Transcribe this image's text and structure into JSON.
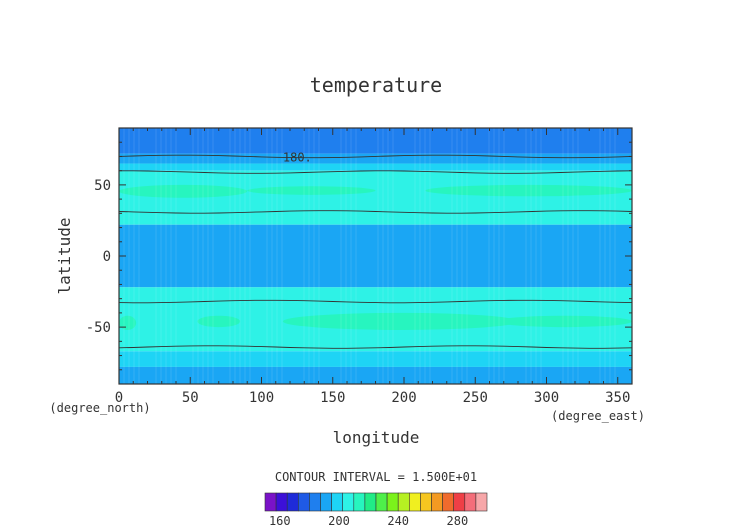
{
  "chart_data": {
    "type": "heatmap",
    "title": "temperature",
    "xlabel": "longitude",
    "ylabel": "latitude",
    "x_units": "(degree_east)",
    "y_units": "(degree_north)",
    "xlim": [
      0,
      360
    ],
    "ylim": [
      -90,
      90
    ],
    "x_ticks": [
      "0",
      "50",
      "100",
      "150",
      "200",
      "250",
      "300",
      "350"
    ],
    "y_ticks": [
      "-50",
      "0",
      "50"
    ],
    "grid": false,
    "contour_label": "180.",
    "contour_interval_text": "CONTOUR INTERVAL = 1.500E+01",
    "colorbar": {
      "tick_labels": [
        "160",
        "200",
        "240",
        "280"
      ],
      "colors": [
        "#7a12c8",
        "#3c10d8",
        "#1e2bd9",
        "#1f5ae6",
        "#1f7fee",
        "#1aa6f4",
        "#1ed4f5",
        "#2ef2e6",
        "#27f5bf",
        "#20ec86",
        "#4ef04a",
        "#7bf21b",
        "#b6f022",
        "#f0ef20",
        "#f6c620",
        "#f39a22",
        "#f06b2d",
        "#ef3f46",
        "#f46e7a",
        "#f7a7a9"
      ]
    },
    "bands": [
      {
        "from": 90,
        "to": 72,
        "color": "#1f7fee"
      },
      {
        "from": 72,
        "to": 65,
        "color": "#1aa6f4"
      },
      {
        "from": 65,
        "to": 60,
        "color": "#1ed4f5"
      },
      {
        "from": 60,
        "to": 22,
        "color": "#2ef2e6"
      },
      {
        "from": 22,
        "to": -22,
        "color": "#1aa6f4"
      },
      {
        "from": -22,
        "to": -67,
        "color": "#2ef2e6"
      },
      {
        "from": -67,
        "to": -78,
        "color": "#1ed4f5"
      },
      {
        "from": -78,
        "to": -90,
        "color": "#1aa6f4"
      }
    ],
    "patches": [
      {
        "lon": [
          0,
          90
        ],
        "lat": [
          41,
          50
        ],
        "color": "#27f5bf"
      },
      {
        "lon": [
          90,
          180
        ],
        "lat": [
          43,
          49
        ],
        "color": "#27f5bf"
      },
      {
        "lon": [
          215,
          360
        ],
        "lat": [
          42,
          50
        ],
        "color": "#27f5bf"
      },
      {
        "lon": [
          0,
          12
        ],
        "lat": [
          -52,
          -42
        ],
        "color": "#27f5bf"
      },
      {
        "lon": [
          55,
          85
        ],
        "lat": [
          -50,
          -42
        ],
        "color": "#27f5bf"
      },
      {
        "lon": [
          115,
          280
        ],
        "lat": [
          -52,
          -40
        ],
        "color": "#27f5bf"
      },
      {
        "lon": [
          265,
          360
        ],
        "lat": [
          -50,
          -42
        ],
        "color": "#27f5bf"
      }
    ],
    "contours": [
      {
        "lat": 70,
        "label": "180."
      },
      {
        "lat": 59
      },
      {
        "lat": 31
      },
      {
        "lat": -32
      },
      {
        "lat": -64
      }
    ]
  }
}
